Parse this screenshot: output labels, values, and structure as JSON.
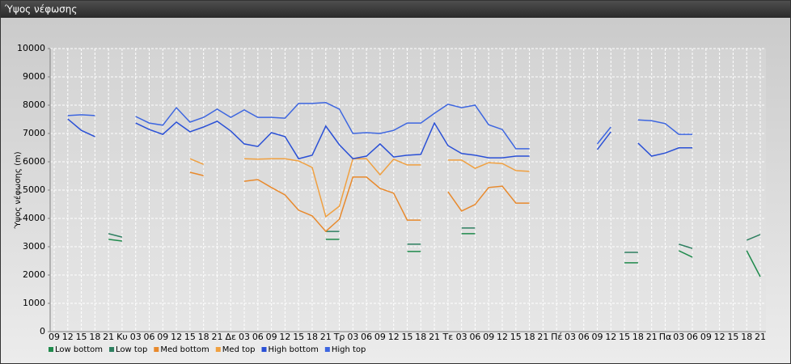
{
  "window": {
    "title": "Ύψος νέφωσης"
  },
  "chart_data": {
    "type": "line",
    "ylabel": "Ύψος νέφωσης (m)",
    "categories": [
      "09",
      "12",
      "15",
      "18",
      "21",
      "Κυ",
      "03",
      "06",
      "09",
      "12",
      "15",
      "18",
      "21",
      "Δε",
      "03",
      "06",
      "09",
      "12",
      "15",
      "18",
      "21",
      "Τρ",
      "03",
      "06",
      "09",
      "12",
      "15",
      "18",
      "21",
      "Τε",
      "03",
      "06",
      "09",
      "12",
      "15",
      "18",
      "21",
      "Πέ",
      "03",
      "06",
      "09",
      "12",
      "15",
      "18",
      "21",
      "Πα",
      "03",
      "06",
      "09",
      "12",
      "15",
      "18",
      "21"
    ],
    "series": [
      {
        "name": "Low bottom",
        "color": "#1f8a4c",
        "values": [
          null,
          null,
          null,
          null,
          3260,
          3200,
          null,
          null,
          null,
          null,
          null,
          null,
          null,
          null,
          null,
          null,
          null,
          null,
          null,
          null,
          3260,
          3260,
          null,
          null,
          null,
          null,
          2830,
          2830,
          null,
          null,
          3460,
          3460,
          null,
          null,
          null,
          null,
          null,
          null,
          null,
          null,
          null,
          null,
          2430,
          2430,
          null,
          null,
          2860,
          2630,
          null,
          null,
          null,
          2860,
          1940
        ]
      },
      {
        "name": "Low top",
        "color": "#2e7f60",
        "values": [
          null,
          null,
          null,
          null,
          3460,
          3340,
          null,
          null,
          null,
          null,
          null,
          null,
          null,
          null,
          null,
          null,
          null,
          null,
          null,
          null,
          3540,
          3540,
          null,
          null,
          null,
          null,
          3090,
          3090,
          null,
          null,
          3660,
          3660,
          null,
          null,
          null,
          null,
          null,
          null,
          null,
          null,
          null,
          null,
          2800,
          2800,
          null,
          null,
          3090,
          2940,
          null,
          null,
          null,
          3230,
          3430
        ]
      },
      {
        "name": "Med bottom",
        "color": "#e8892c",
        "values": [
          null,
          null,
          null,
          null,
          null,
          null,
          null,
          null,
          null,
          null,
          5630,
          5510,
          null,
          null,
          5310,
          5370,
          5090,
          4830,
          4290,
          4090,
          3540,
          3970,
          5460,
          5460,
          5060,
          4890,
          3940,
          3940,
          null,
          4940,
          4260,
          4490,
          5090,
          5140,
          4540,
          4540,
          null,
          null,
          null,
          null,
          null,
          null,
          null,
          null,
          null,
          null,
          null,
          null,
          null,
          null,
          null,
          null,
          null
        ]
      },
      {
        "name": "Med top",
        "color": "#f0a040",
        "values": [
          null,
          null,
          null,
          null,
          null,
          null,
          null,
          null,
          null,
          null,
          6110,
          5910,
          null,
          null,
          6110,
          6090,
          6110,
          6110,
          6030,
          5800,
          4060,
          4430,
          6110,
          6110,
          5540,
          6090,
          5890,
          5890,
          null,
          6060,
          6060,
          5770,
          5970,
          5940,
          5690,
          5660,
          null,
          null,
          null,
          null,
          null,
          null,
          null,
          null,
          null,
          null,
          null,
          null,
          null,
          null,
          null,
          null,
          null
        ]
      },
      {
        "name": "High bottom",
        "color": "#2a50d6",
        "values": [
          null,
          7510,
          7110,
          6890,
          null,
          null,
          7370,
          7140,
          6970,
          7400,
          7060,
          7230,
          7430,
          7090,
          6630,
          6540,
          7030,
          6890,
          6110,
          6230,
          7260,
          6600,
          6110,
          6200,
          6630,
          6170,
          6230,
          6260,
          7370,
          6570,
          6290,
          6230,
          6140,
          6140,
          6200,
          6200,
          null,
          null,
          null,
          null,
          6430,
          7060,
          null,
          6660,
          6200,
          6310,
          6490,
          6490,
          null,
          null,
          null,
          null,
          null
        ]
      },
      {
        "name": "High top",
        "color": "#3d66e0",
        "values": [
          null,
          7630,
          7660,
          7630,
          null,
          null,
          7600,
          7370,
          7290,
          7910,
          7400,
          7570,
          7860,
          7570,
          7830,
          7570,
          7570,
          7540,
          8060,
          8060,
          8090,
          7860,
          7000,
          7030,
          7000,
          7110,
          7370,
          7370,
          7710,
          8030,
          7910,
          8000,
          7310,
          7140,
          6460,
          6460,
          null,
          null,
          null,
          null,
          6630,
          7230,
          null,
          7480,
          7450,
          7350,
          6970,
          6970,
          null,
          null,
          null,
          null,
          null
        ]
      }
    ],
    "ylim": [
      0,
      10000
    ],
    "yticks": [
      0,
      1000,
      2000,
      3000,
      4000,
      5000,
      6000,
      7000,
      8000,
      9000,
      10000
    ],
    "grid": true,
    "legend": "bottom-left"
  }
}
